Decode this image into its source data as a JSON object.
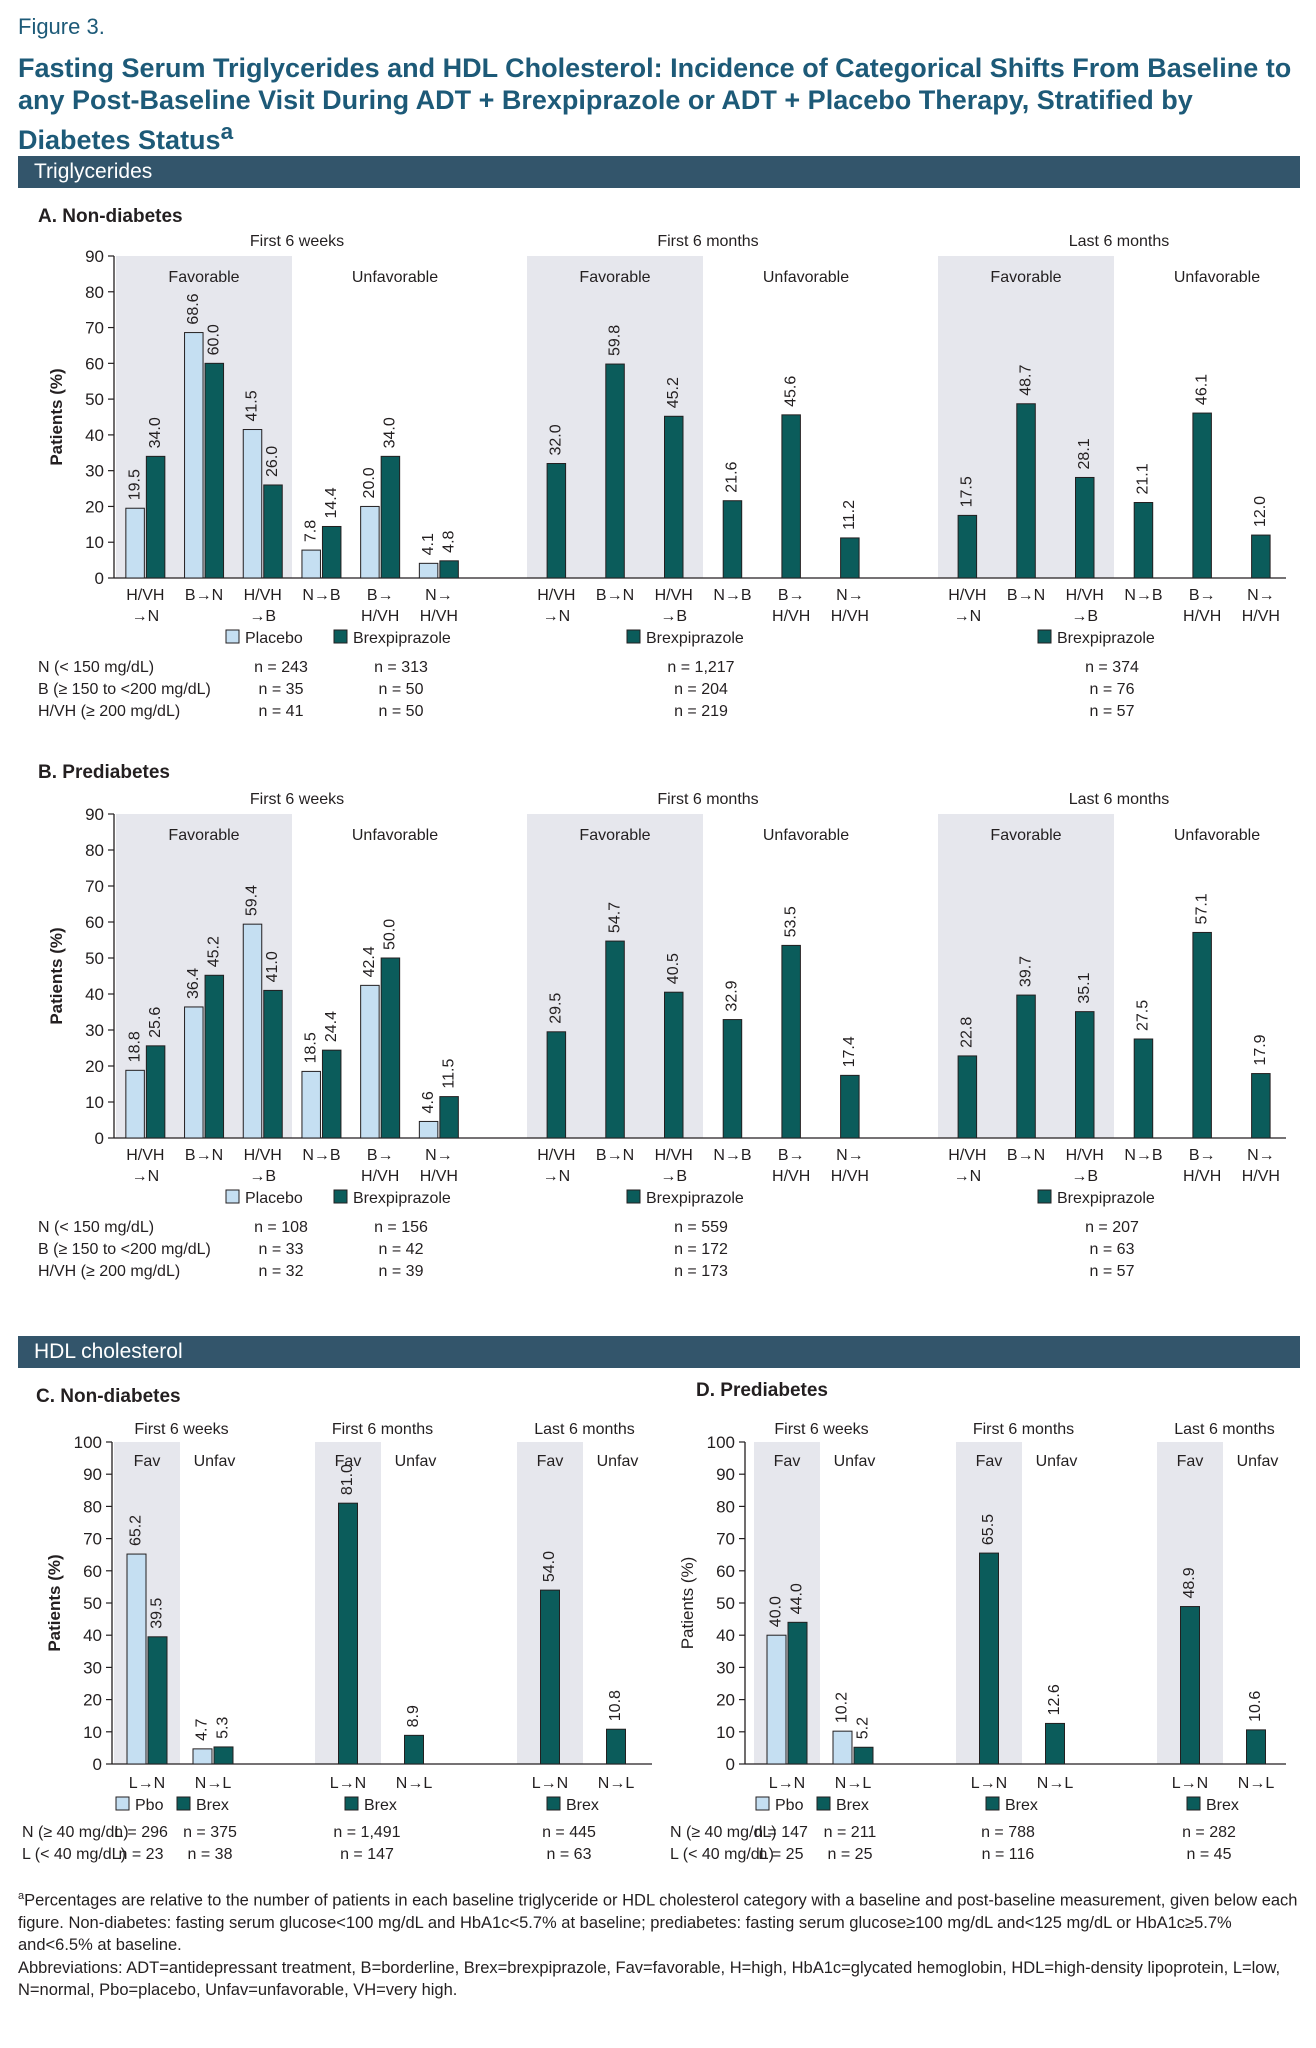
{
  "figure_label": "Figure 3.",
  "title": "Fasting Serum Triglycerides and HDL Cholesterol: Incidence of Categorical Shifts From Baseline to any Post-Baseline Visit During ADT + Brexpiprazole or ADT + Placebo Therapy, Stratified by Diabetes Status",
  "title_sup": "a",
  "section_tg": "Triglycerides",
  "section_hdl": "HDL cholesterol",
  "colors": {
    "placebo": "#c5dff2",
    "brex": "#0b5c5b",
    "shade": "#e6e7ed",
    "band": "#33556b",
    "title": "#1d5a78"
  },
  "legend": {
    "placebo": "Placebo",
    "brex": "Brexpiprazole",
    "pbo": "Pbo",
    "brex_short": "Brex"
  },
  "footnote_a": "Percentages are relative to the number of patients in each baseline triglyceride or HDL cholesterol category with a baseline and post-baseline measurement, given below each figure. Non-diabetes: fasting serum glucose<100 mg/dL and HbA1c<5.7% at baseline; prediabetes: fasting serum glucose≥100 mg/dL and<125 mg/dL or HbA1c≥5.7% and<6.5% at baseline.",
  "footnote_a_sup": "a",
  "abbreviations": "Abbreviations: ADT=antidepressant treatment, B=borderline, Brex=brexpiprazole, Fav=favorable, H=high, HbA1c=glycated hemoglobin, HDL=high-density lipoprotein, L=low, N=normal, Pbo=placebo, Unfav=unfavorable, VH=very high.",
  "chart_data": [
    {
      "id": "A",
      "type": "bar",
      "title": "A. Non-diabetes",
      "ylabel": "Patients (%)",
      "ylim": [
        0,
        90
      ],
      "yticks": [
        0,
        10,
        20,
        30,
        40,
        50,
        60,
        70,
        80,
        90
      ],
      "groups": [
        "First 6 weeks",
        "First 6 months",
        "Last 6 months"
      ],
      "regions": [
        "Favorable",
        "Unfavorable"
      ],
      "categories": [
        [
          "H/VH",
          "→N"
        ],
        [
          "B→N"
        ],
        [
          "H/VH",
          "→B"
        ],
        [
          "N→B"
        ],
        [
          "B→",
          "H/VH"
        ],
        [
          "N→",
          "H/VH"
        ]
      ],
      "series": [
        {
          "name": "Placebo",
          "values": [
            [
              19.5,
              68.6,
              41.5,
              7.8,
              20.0,
              4.1
            ],
            null,
            null
          ],
          "labels": [
            [
              "19.5",
              "68.6",
              "41.5",
              "7.8",
              "20.0",
              "4.1"
            ],
            null,
            null
          ]
        },
        {
          "name": "Brexpiprazole",
          "values": [
            [
              34.0,
              60.0,
              26.0,
              14.4,
              34.0,
              4.8
            ],
            [
              32.0,
              59.8,
              45.2,
              21.6,
              45.6,
              11.2
            ],
            [
              17.5,
              48.7,
              28.1,
              21.1,
              46.1,
              12.0
            ]
          ],
          "labels": [
            [
              "34.0",
              "60.0",
              "26.0",
              "14.4",
              "34.0",
              "4.8"
            ],
            [
              "32.0",
              "59.8",
              "45.2",
              "21.6",
              "45.6",
              "11.2"
            ],
            [
              "17.5",
              "48.7",
              "28.1",
              "21.1",
              "46.1",
              "12.0"
            ]
          ]
        }
      ],
      "n_labels": [
        "N (< 150 mg/dL)",
        "B (≥ 150 to <200 mg/dL)",
        "H/VH (≥ 200 mg/dL)"
      ],
      "n_placebo": [
        "n = 243",
        "n = 35",
        "n = 41"
      ],
      "n_brex": [
        [
          "n = 313",
          "n = 50",
          "n = 50"
        ],
        [
          "n = 1,217",
          "n = 204",
          "n = 219"
        ],
        [
          "n = 374",
          "n = 76",
          "n = 57"
        ]
      ]
    },
    {
      "id": "B",
      "type": "bar",
      "title": "B. Prediabetes",
      "ylabel": "Patients (%)",
      "ylim": [
        0,
        90
      ],
      "yticks": [
        0,
        10,
        20,
        30,
        40,
        50,
        60,
        70,
        80,
        90
      ],
      "groups": [
        "First 6 weeks",
        "First 6 months",
        "Last 6 months"
      ],
      "regions": [
        "Favorable",
        "Unfavorable"
      ],
      "categories": [
        [
          "H/VH",
          "→N"
        ],
        [
          "B→N"
        ],
        [
          "H/VH",
          "→B"
        ],
        [
          "N→B"
        ],
        [
          "B→",
          "H/VH"
        ],
        [
          "N→",
          "H/VH"
        ]
      ],
      "series": [
        {
          "name": "Placebo",
          "values": [
            [
              18.8,
              36.4,
              59.4,
              18.5,
              42.4,
              4.6
            ],
            null,
            null
          ],
          "labels": [
            [
              "18.8",
              "36.4",
              "59.4",
              "18.5",
              "42.4",
              "4.6"
            ],
            null,
            null
          ]
        },
        {
          "name": "Brexpiprazole",
          "values": [
            [
              25.6,
              45.2,
              41.0,
              24.4,
              50.0,
              11.5
            ],
            [
              29.5,
              54.7,
              40.5,
              32.9,
              53.5,
              17.4
            ],
            [
              22.8,
              39.7,
              35.1,
              27.5,
              57.1,
              17.9
            ]
          ],
          "labels": [
            [
              "25.6",
              "45.2",
              "41.0",
              "24.4",
              "50.0",
              "11.5"
            ],
            [
              "29.5",
              "54.7",
              "40.5",
              "32.9",
              "53.5",
              "17.4"
            ],
            [
              "22.8",
              "39.7",
              "35.1",
              "27.5",
              "57.1",
              "17.9"
            ]
          ]
        }
      ],
      "n_labels": [
        "N (< 150 mg/dL)",
        "B (≥ 150 to <200 mg/dL)",
        "H/VH (≥ 200 mg/dL)"
      ],
      "n_placebo": [
        "n = 108",
        "n = 33",
        "n = 32"
      ],
      "n_brex": [
        [
          "n = 156",
          "n = 42",
          "n = 39"
        ],
        [
          "n = 559",
          "n = 172",
          "n = 173"
        ],
        [
          "n = 207",
          "n = 63",
          "n = 57"
        ]
      ]
    },
    {
      "id": "C",
      "type": "bar",
      "title": "C. Non-diabetes",
      "ylabel": "Patients (%)",
      "ylim": [
        0,
        100
      ],
      "yticks": [
        0,
        10,
        20,
        30,
        40,
        50,
        60,
        70,
        80,
        90,
        100
      ],
      "groups": [
        "First 6 weeks",
        "First 6 months",
        "Last 6 months"
      ],
      "regions": [
        "Fav",
        "Unfav"
      ],
      "categories": [
        [
          "L→N"
        ],
        [
          "N→L"
        ]
      ],
      "series": [
        {
          "name": "Pbo",
          "values": [
            [
              65.2,
              4.7
            ],
            null,
            null
          ],
          "labels": [
            [
              "65.2",
              "4.7"
            ],
            null,
            null
          ]
        },
        {
          "name": "Brex",
          "values": [
            [
              39.5,
              5.3
            ],
            [
              81.0,
              8.9
            ],
            [
              54.0,
              10.8
            ]
          ],
          "labels": [
            [
              "39.5",
              "5.3"
            ],
            [
              "81.0",
              "8.9"
            ],
            [
              "54.0",
              "10.8"
            ]
          ]
        }
      ],
      "n_labels": [
        "N (≥ 40 mg/dL)",
        "L (< 40 mg/dL)"
      ],
      "n_placebo": [
        "n = 296",
        "n = 23"
      ],
      "n_brex": [
        [
          "n = 375",
          "n = 38"
        ],
        [
          "n = 1,491",
          "n = 147"
        ],
        [
          "n = 445",
          "n = 63"
        ]
      ]
    },
    {
      "id": "D",
      "type": "bar",
      "title": "D. Prediabetes",
      "ylabel": "Patients (%)",
      "ylim": [
        0,
        100
      ],
      "yticks": [
        0,
        10,
        20,
        30,
        40,
        50,
        60,
        70,
        80,
        90,
        100
      ],
      "groups": [
        "First 6 weeks",
        "First 6 months",
        "Last 6 months"
      ],
      "regions": [
        "Fav",
        "Unfav"
      ],
      "categories": [
        [
          "L→N"
        ],
        [
          "N→L"
        ]
      ],
      "series": [
        {
          "name": "Pbo",
          "values": [
            [
              40.0,
              10.2
            ],
            null,
            null
          ],
          "labels": [
            [
              "40.0",
              "10.2"
            ],
            null,
            null
          ]
        },
        {
          "name": "Brex",
          "values": [
            [
              44.0,
              5.2
            ],
            [
              65.5,
              12.6
            ],
            [
              48.9,
              10.6
            ]
          ],
          "labels": [
            [
              "44.0",
              "5.2"
            ],
            [
              "65.5",
              "12.6"
            ],
            [
              "48.9",
              "10.6"
            ]
          ]
        }
      ],
      "n_labels": [
        "N (≥ 40 mg/dL)",
        "L (< 40 mg/dL)"
      ],
      "n_placebo": [
        "n = 147",
        "n = 25"
      ],
      "n_brex": [
        [
          "n = 211",
          "n = 25"
        ],
        [
          "n = 788",
          "n = 116"
        ],
        [
          "n = 282",
          "n = 45"
        ]
      ]
    }
  ]
}
